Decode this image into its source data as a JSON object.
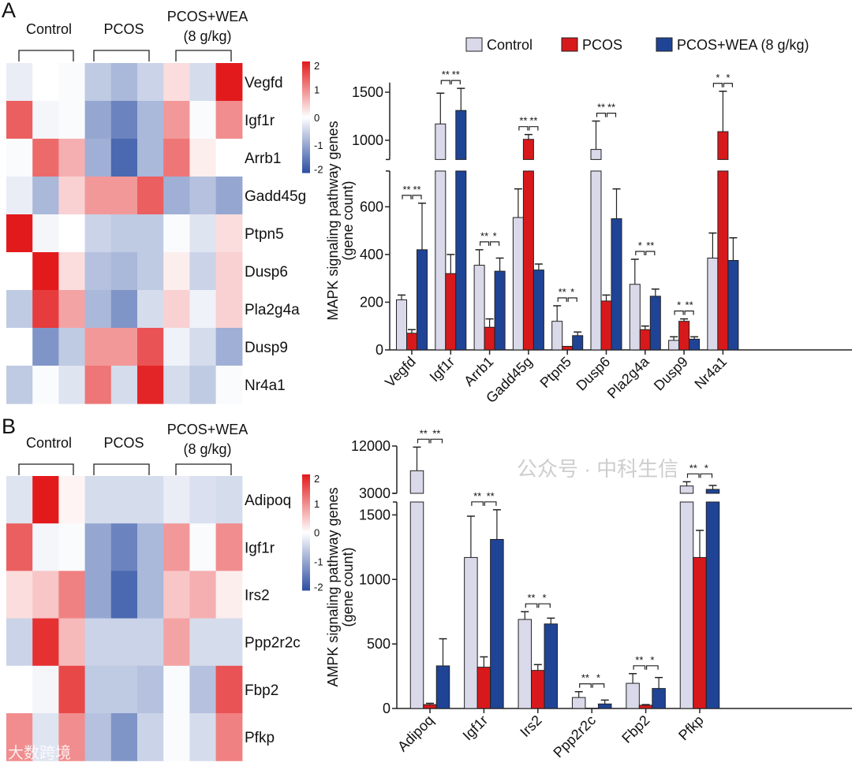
{
  "panels": {
    "a": "A",
    "b": "B"
  },
  "colors": {
    "control": "#d9d9ea",
    "pcos": "#d7191c",
    "wea": "#1f4496",
    "heat_pos": "#e31a1c",
    "heat_neg": "#2b4ea2"
  },
  "legend": [
    "Control",
    "PCOS",
    "PCOS+WEA (8 g/kg)"
  ],
  "watermarks": {
    "wechat": "公众号 · 中科生信",
    "corner": "大数跨境"
  },
  "chart_data": [
    {
      "type": "heatmap",
      "panel": "A",
      "groups": [
        {
          "label": "Control"
        },
        {
          "label": "PCOS"
        },
        {
          "label": "PCOS+WEA",
          "sublabel": "(8 g/kg)"
        }
      ],
      "colorbar": {
        "range": [
          -2,
          2
        ],
        "ticks": [
          "2",
          "1",
          "0",
          "-1",
          "-2"
        ]
      },
      "rows": [
        {
          "gene": "Vegfd",
          "values": [
            -0.2,
            0,
            -0.05,
            -0.6,
            -0.8,
            -0.5,
            0.3,
            -0.4,
            2
          ]
        },
        {
          "gene": "Igf1r",
          "values": [
            1.4,
            -0.1,
            -0.05,
            -1.0,
            -1.4,
            -0.8,
            0.9,
            -0.05,
            1.0
          ]
        },
        {
          "gene": "Arrb1",
          "values": [
            -0.05,
            1.3,
            0.7,
            -0.9,
            -1.7,
            -0.8,
            1.2,
            0.15,
            0
          ]
        },
        {
          "gene": "Gadd45g",
          "values": [
            -0.2,
            -0.8,
            0.4,
            0.9,
            0.9,
            1.4,
            -0.9,
            -0.7,
            -1.0
          ]
        },
        {
          "gene": "Ptpn5",
          "values": [
            2.0,
            -0.1,
            0,
            -0.5,
            -0.6,
            -0.6,
            -0.05,
            -0.3,
            0.3
          ]
        },
        {
          "gene": "Dusp6",
          "values": [
            0,
            2.0,
            0.3,
            -0.7,
            -0.8,
            -0.6,
            0.15,
            -0.5,
            0.4
          ]
        },
        {
          "gene": "Pla2g4a",
          "values": [
            -0.6,
            1.7,
            0.8,
            -0.8,
            -1.2,
            -0.4,
            0.4,
            -0.15,
            0.4
          ]
        },
        {
          "gene": "Dusp9",
          "values": [
            0,
            -1.2,
            -0.6,
            0.9,
            0.9,
            1.5,
            -0.15,
            -0.4,
            -0.9
          ]
        },
        {
          "gene": "Nr4a1",
          "values": [
            -0.6,
            -0.05,
            -0.3,
            1.2,
            -0.4,
            1.9,
            -0.4,
            -0.6,
            -0.05
          ]
        }
      ]
    },
    {
      "type": "heatmap",
      "panel": "B",
      "groups": [
        {
          "label": "Control"
        },
        {
          "label": "PCOS"
        },
        {
          "label": "PCOS+WEA",
          "sublabel": "(8 g/kg)"
        }
      ],
      "colorbar": {
        "range": [
          -2,
          2
        ],
        "ticks": [
          "2",
          "1",
          "0",
          "-1",
          "-2"
        ]
      },
      "rows": [
        {
          "gene": "Adipoq",
          "values": [
            -0.3,
            2.0,
            0.1,
            -0.4,
            -0.4,
            -0.4,
            -0.2,
            -0.35,
            -0.4
          ]
        },
        {
          "gene": "Igf1r",
          "values": [
            1.4,
            -0.1,
            -0.05,
            -1.0,
            -1.4,
            -0.8,
            0.9,
            -0.05,
            1.0
          ]
        },
        {
          "gene": "Irs2",
          "values": [
            0.3,
            0.5,
            1.1,
            -1.0,
            -1.7,
            -0.8,
            0.5,
            0.7,
            0.15
          ]
        },
        {
          "gene": "Ppp2r2c",
          "values": [
            -0.5,
            1.8,
            0.6,
            -0.5,
            -0.5,
            -0.5,
            0.8,
            -0.4,
            -0.4
          ]
        },
        {
          "gene": "Fbp2",
          "values": [
            0,
            -0.1,
            1.6,
            -0.6,
            -0.6,
            -0.7,
            -0.05,
            -0.7,
            1.5
          ]
        },
        {
          "gene": "Pfkp",
          "values": [
            1.0,
            -0.3,
            1.0,
            -0.7,
            -1.2,
            -0.5,
            -0.05,
            -0.4,
            1.1
          ]
        }
      ]
    },
    {
      "type": "bar",
      "panel": "A",
      "ylabel": "MAPK signaling pathway genes",
      "ylabel_line2": "(gene count)",
      "y_segments": [
        [
          0,
          750
        ],
        [
          800,
          1600
        ]
      ],
      "yticks": [
        "0",
        "200",
        "400",
        "600",
        "1000",
        "1500"
      ],
      "ytick_values": [
        0,
        200,
        400,
        600,
        1000,
        1500
      ],
      "legend_position": "top-right",
      "categories": [
        "Vegfd",
        "Igf1r",
        "Arrb1",
        "Gadd45g",
        "Ptpn5",
        "Dusp6",
        "Pla2g4a",
        "Dusp9",
        "Nr4a1"
      ],
      "series": [
        {
          "name": "Control",
          "values": [
            210,
            1170,
            355,
            555,
            120,
            905,
            275,
            40,
            385
          ],
          "error_top": [
            230,
            1490,
            420,
            675,
            185,
            1200,
            380,
            55,
            490
          ]
        },
        {
          "name": "PCOS",
          "values": [
            70,
            320,
            95,
            1010,
            15,
            205,
            85,
            120,
            1090
          ],
          "error_top": [
            85,
            400,
            130,
            1060,
            15,
            230,
            100,
            130,
            1510
          ]
        },
        {
          "name": "PCOS+WEA (8 g/kg)",
          "values": [
            420,
            1310,
            330,
            335,
            60,
            550,
            225,
            45,
            375
          ],
          "error_top": [
            615,
            1540,
            385,
            360,
            75,
            675,
            255,
            55,
            470
          ]
        }
      ],
      "significance": [
        [
          "**",
          "**"
        ],
        [
          "**",
          "**"
        ],
        [
          "**",
          "*"
        ],
        [
          "**",
          "**"
        ],
        [
          "**",
          "*"
        ],
        [
          "**",
          "**"
        ],
        [
          "*",
          "**"
        ],
        [
          "*",
          "**"
        ],
        [
          "*",
          "*"
        ]
      ]
    },
    {
      "type": "bar",
      "panel": "B",
      "ylabel": "AMPK signaling pathway genes",
      "ylabel_line2": "(gene count)",
      "y_segments": [
        [
          0,
          1600
        ],
        [
          3000,
          12000
        ]
      ],
      "yticks": [
        "0",
        "500",
        "1000",
        "1500",
        "3000",
        "12000"
      ],
      "ytick_values": [
        0,
        500,
        1000,
        1500,
        3000,
        12000
      ],
      "categories": [
        "Adipoq",
        "Igf1r",
        "Irs2",
        "Ppp2r2c",
        "Fbp2",
        "Pfkp"
      ],
      "series": [
        {
          "name": "Control",
          "values": [
            7300,
            1170,
            690,
            85,
            195,
            4400
          ],
          "error_top": [
            11800,
            1490,
            750,
            130,
            270,
            5200
          ]
        },
        {
          "name": "PCOS",
          "values": [
            30,
            320,
            295,
            2,
            25,
            1170
          ],
          "error_top": [
            40,
            400,
            340,
            2,
            30,
            1380
          ]
        },
        {
          "name": "PCOS+WEA (8 g/kg)",
          "values": [
            330,
            1310,
            655,
            35,
            155,
            3750
          ],
          "error_top": [
            540,
            1540,
            700,
            65,
            240,
            4500
          ]
        }
      ],
      "significance": [
        [
          "**",
          "**"
        ],
        [
          "**",
          "**"
        ],
        [
          "**",
          "*"
        ],
        [
          "**",
          "*"
        ],
        [
          "**",
          "*"
        ],
        [
          "**",
          "*"
        ]
      ]
    }
  ]
}
